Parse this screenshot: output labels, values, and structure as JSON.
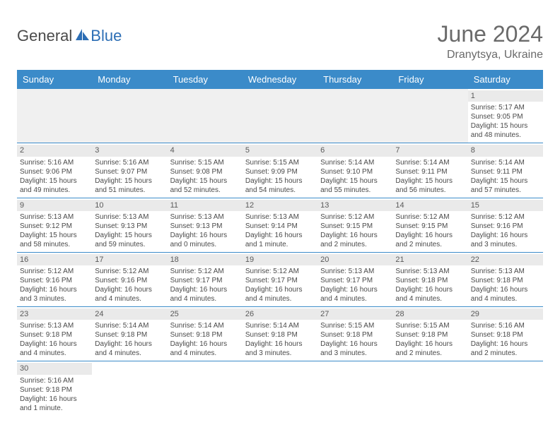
{
  "logo": {
    "text_gray": "General",
    "text_blue": "Blue"
  },
  "title": "June 2024",
  "location": "Dranytsya, Ukraine",
  "colors": {
    "header_bg": "#3b8bc9",
    "header_text": "#ffffff",
    "row_border": "#3b8bc9",
    "daynum_bg": "#eaeaea",
    "text_color": "#4a4a4a",
    "title_color": "#6a6a6a",
    "logo_blue": "#2c6eb5",
    "empty_bg": "#f0f0f0"
  },
  "day_names": [
    "Sunday",
    "Monday",
    "Tuesday",
    "Wednesday",
    "Thursday",
    "Friday",
    "Saturday"
  ],
  "weeks": [
    [
      null,
      null,
      null,
      null,
      null,
      null,
      {
        "num": "1",
        "sunrise": "Sunrise: 5:17 AM",
        "sunset": "Sunset: 9:05 PM",
        "daylight": "Daylight: 15 hours and 48 minutes."
      }
    ],
    [
      {
        "num": "2",
        "sunrise": "Sunrise: 5:16 AM",
        "sunset": "Sunset: 9:06 PM",
        "daylight": "Daylight: 15 hours and 49 minutes."
      },
      {
        "num": "3",
        "sunrise": "Sunrise: 5:16 AM",
        "sunset": "Sunset: 9:07 PM",
        "daylight": "Daylight: 15 hours and 51 minutes."
      },
      {
        "num": "4",
        "sunrise": "Sunrise: 5:15 AM",
        "sunset": "Sunset: 9:08 PM",
        "daylight": "Daylight: 15 hours and 52 minutes."
      },
      {
        "num": "5",
        "sunrise": "Sunrise: 5:15 AM",
        "sunset": "Sunset: 9:09 PM",
        "daylight": "Daylight: 15 hours and 54 minutes."
      },
      {
        "num": "6",
        "sunrise": "Sunrise: 5:14 AM",
        "sunset": "Sunset: 9:10 PM",
        "daylight": "Daylight: 15 hours and 55 minutes."
      },
      {
        "num": "7",
        "sunrise": "Sunrise: 5:14 AM",
        "sunset": "Sunset: 9:11 PM",
        "daylight": "Daylight: 15 hours and 56 minutes."
      },
      {
        "num": "8",
        "sunrise": "Sunrise: 5:14 AM",
        "sunset": "Sunset: 9:11 PM",
        "daylight": "Daylight: 15 hours and 57 minutes."
      }
    ],
    [
      {
        "num": "9",
        "sunrise": "Sunrise: 5:13 AM",
        "sunset": "Sunset: 9:12 PM",
        "daylight": "Daylight: 15 hours and 58 minutes."
      },
      {
        "num": "10",
        "sunrise": "Sunrise: 5:13 AM",
        "sunset": "Sunset: 9:13 PM",
        "daylight": "Daylight: 15 hours and 59 minutes."
      },
      {
        "num": "11",
        "sunrise": "Sunrise: 5:13 AM",
        "sunset": "Sunset: 9:13 PM",
        "daylight": "Daylight: 16 hours and 0 minutes."
      },
      {
        "num": "12",
        "sunrise": "Sunrise: 5:13 AM",
        "sunset": "Sunset: 9:14 PM",
        "daylight": "Daylight: 16 hours and 1 minute."
      },
      {
        "num": "13",
        "sunrise": "Sunrise: 5:12 AM",
        "sunset": "Sunset: 9:15 PM",
        "daylight": "Daylight: 16 hours and 2 minutes."
      },
      {
        "num": "14",
        "sunrise": "Sunrise: 5:12 AM",
        "sunset": "Sunset: 9:15 PM",
        "daylight": "Daylight: 16 hours and 2 minutes."
      },
      {
        "num": "15",
        "sunrise": "Sunrise: 5:12 AM",
        "sunset": "Sunset: 9:16 PM",
        "daylight": "Daylight: 16 hours and 3 minutes."
      }
    ],
    [
      {
        "num": "16",
        "sunrise": "Sunrise: 5:12 AM",
        "sunset": "Sunset: 9:16 PM",
        "daylight": "Daylight: 16 hours and 3 minutes."
      },
      {
        "num": "17",
        "sunrise": "Sunrise: 5:12 AM",
        "sunset": "Sunset: 9:16 PM",
        "daylight": "Daylight: 16 hours and 4 minutes."
      },
      {
        "num": "18",
        "sunrise": "Sunrise: 5:12 AM",
        "sunset": "Sunset: 9:17 PM",
        "daylight": "Daylight: 16 hours and 4 minutes."
      },
      {
        "num": "19",
        "sunrise": "Sunrise: 5:12 AM",
        "sunset": "Sunset: 9:17 PM",
        "daylight": "Daylight: 16 hours and 4 minutes."
      },
      {
        "num": "20",
        "sunrise": "Sunrise: 5:13 AM",
        "sunset": "Sunset: 9:17 PM",
        "daylight": "Daylight: 16 hours and 4 minutes."
      },
      {
        "num": "21",
        "sunrise": "Sunrise: 5:13 AM",
        "sunset": "Sunset: 9:18 PM",
        "daylight": "Daylight: 16 hours and 4 minutes."
      },
      {
        "num": "22",
        "sunrise": "Sunrise: 5:13 AM",
        "sunset": "Sunset: 9:18 PM",
        "daylight": "Daylight: 16 hours and 4 minutes."
      }
    ],
    [
      {
        "num": "23",
        "sunrise": "Sunrise: 5:13 AM",
        "sunset": "Sunset: 9:18 PM",
        "daylight": "Daylight: 16 hours and 4 minutes."
      },
      {
        "num": "24",
        "sunrise": "Sunrise: 5:14 AM",
        "sunset": "Sunset: 9:18 PM",
        "daylight": "Daylight: 16 hours and 4 minutes."
      },
      {
        "num": "25",
        "sunrise": "Sunrise: 5:14 AM",
        "sunset": "Sunset: 9:18 PM",
        "daylight": "Daylight: 16 hours and 4 minutes."
      },
      {
        "num": "26",
        "sunrise": "Sunrise: 5:14 AM",
        "sunset": "Sunset: 9:18 PM",
        "daylight": "Daylight: 16 hours and 3 minutes."
      },
      {
        "num": "27",
        "sunrise": "Sunrise: 5:15 AM",
        "sunset": "Sunset: 9:18 PM",
        "daylight": "Daylight: 16 hours and 3 minutes."
      },
      {
        "num": "28",
        "sunrise": "Sunrise: 5:15 AM",
        "sunset": "Sunset: 9:18 PM",
        "daylight": "Daylight: 16 hours and 2 minutes."
      },
      {
        "num": "29",
        "sunrise": "Sunrise: 5:16 AM",
        "sunset": "Sunset: 9:18 PM",
        "daylight": "Daylight: 16 hours and 2 minutes."
      }
    ],
    [
      {
        "num": "30",
        "sunrise": "Sunrise: 5:16 AM",
        "sunset": "Sunset: 9:18 PM",
        "daylight": "Daylight: 16 hours and 1 minute."
      },
      null,
      null,
      null,
      null,
      null,
      null
    ]
  ]
}
